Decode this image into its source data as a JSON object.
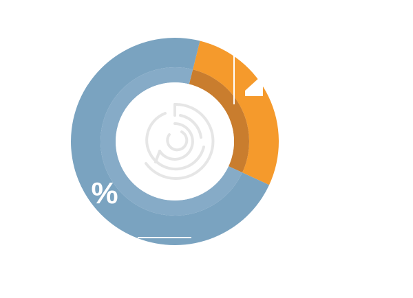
{
  "chart_data": {
    "type": "donut",
    "values": [
      28,
      72
    ],
    "colors": [
      "#f59a2c",
      "#7aa3c0"
    ],
    "inner_colors": [
      "#c97d2e",
      "#86abc7"
    ],
    "annotation": "%"
  }
}
